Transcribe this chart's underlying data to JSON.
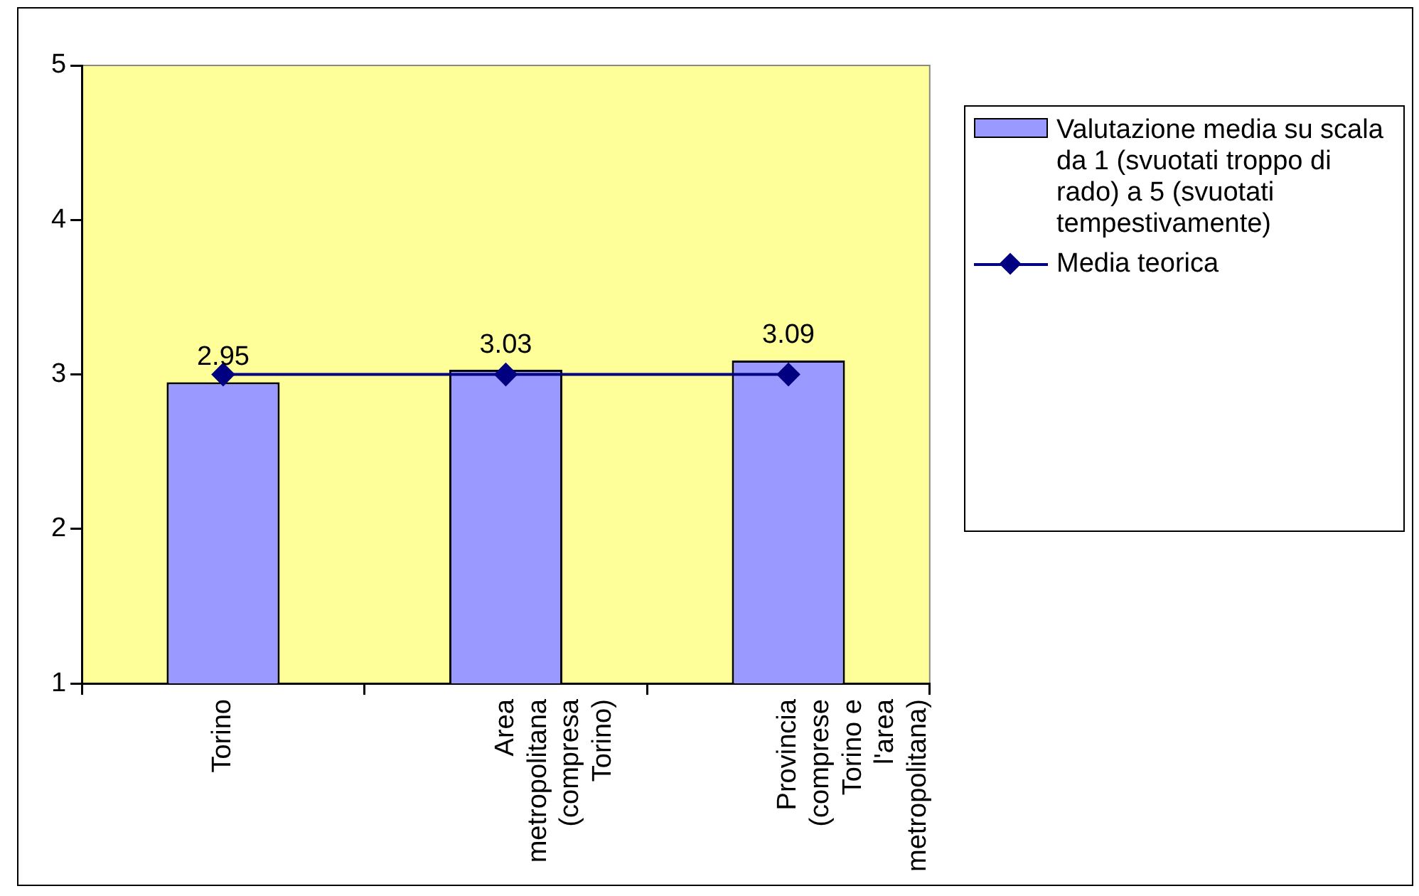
{
  "chart_data": {
    "type": "bar",
    "categories": [
      "Torino",
      "Area metropolitana (compresa Torino)",
      "Provincia (comprese Torino e l'area metropolitana)"
    ],
    "series": [
      {
        "name": "Valutazione media su scala da 1 (svuotati troppo di rado) a 5 (svuotati tempestivamente)",
        "color": "#9999ff",
        "values": [
          2.95,
          3.03,
          3.09
        ],
        "value_labels": [
          "2.95",
          "3.03",
          "3.09"
        ]
      },
      {
        "name": "Media teorica",
        "type": "line",
        "color": "#000080",
        "values": [
          3,
          3,
          3
        ],
        "marker": "diamond"
      }
    ],
    "ylim": [
      1,
      5
    ],
    "yticks": [
      1,
      2,
      3,
      4,
      5
    ],
    "grid": false,
    "legend": "right"
  }
}
